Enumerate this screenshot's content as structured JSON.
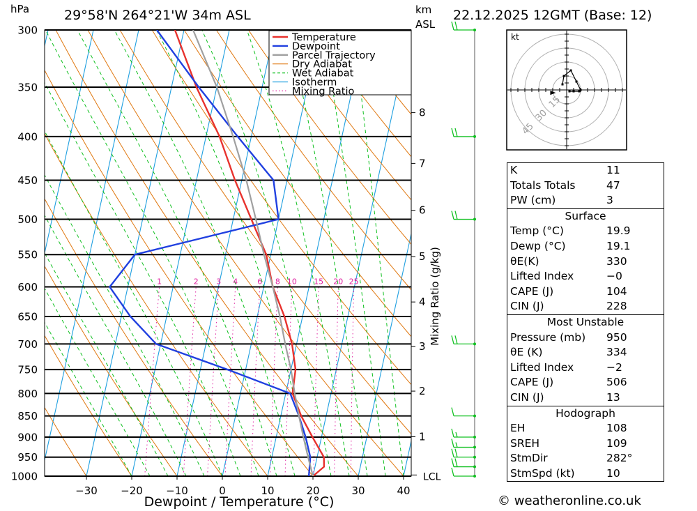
{
  "header": {
    "location": "29°58'N  264°21'W  34m  ASL",
    "timestamp": "22.12.2025  12GMT  (Base: 12)",
    "pressure_unit": "hPa",
    "height_unit_line1": "km",
    "height_unit_line2": "ASL"
  },
  "chart_data": {
    "type": "line",
    "title": "29°58'N 264°21'W 34m ASL",
    "xlabel": "Dewpoint / Temperature (°C)",
    "ylabel": "hPa",
    "mixing_ratio_axis_label": "Mixing Ratio (g/kg)",
    "x_ticks": [
      -30,
      -20,
      -10,
      0,
      10,
      20,
      30,
      40
    ],
    "x_tick_labels": [
      "−30",
      "−20",
      "−10",
      "0",
      "10",
      "20",
      "30",
      "40"
    ],
    "pressure_levels": [
      300,
      350,
      400,
      450,
      500,
      550,
      600,
      650,
      700,
      750,
      800,
      850,
      900,
      950,
      1000
    ],
    "ylim": [
      1000,
      300
    ],
    "height_ticks_km": [
      1,
      2,
      3,
      4,
      5,
      6,
      7,
      8
    ],
    "height_tick_pressures": [
      899,
      795,
      705,
      625,
      553,
      488,
      430,
      375
    ],
    "lcl_label": "LCL",
    "lcl_pressure": 995,
    "mixing_ratio_values": [
      1,
      2,
      3,
      4,
      6,
      8,
      10,
      15,
      20,
      25
    ],
    "legend": [
      {
        "name": "Temperature",
        "color": "#e8322d"
      },
      {
        "name": "Dewpoint",
        "color": "#2040e0"
      },
      {
        "name": "Parcel Trajectory",
        "color": "#a0a0a0"
      },
      {
        "name": "Dry Adiabat",
        "color": "#e07810"
      },
      {
        "name": "Wet Adiabat",
        "color": "#10c020"
      },
      {
        "name": "Isotherm",
        "color": "#20a0e0"
      },
      {
        "name": "Mixing Ratio",
        "color": "#e020a0"
      }
    ],
    "series": [
      {
        "name": "Temperature",
        "points": [
          [
            1000,
            20
          ],
          [
            975,
            22
          ],
          [
            950,
            21.5
          ],
          [
            900,
            18
          ],
          [
            850,
            14.5
          ],
          [
            800,
            11.5
          ],
          [
            750,
            11
          ],
          [
            700,
            9
          ],
          [
            650,
            6
          ],
          [
            600,
            2
          ],
          [
            550,
            -1
          ],
          [
            500,
            -6
          ],
          [
            450,
            -11.5
          ],
          [
            400,
            -17
          ],
          [
            350,
            -24.5
          ],
          [
            300,
            -32
          ]
        ]
      },
      {
        "name": "Dewpoint",
        "points": [
          [
            1000,
            19.1
          ],
          [
            950,
            18.5
          ],
          [
            900,
            16.5
          ],
          [
            850,
            14
          ],
          [
            800,
            11
          ],
          [
            750,
            -4
          ],
          [
            700,
            -21
          ],
          [
            650,
            -28
          ],
          [
            600,
            -34
          ],
          [
            550,
            -30
          ],
          [
            500,
            0
          ],
          [
            450,
            -3
          ],
          [
            400,
            -13
          ],
          [
            350,
            -24
          ],
          [
            300,
            -36
          ]
        ]
      },
      {
        "name": "Parcel Trajectory",
        "points": [
          [
            1000,
            20
          ],
          [
            950,
            18
          ],
          [
            900,
            16
          ],
          [
            850,
            14
          ],
          [
            800,
            12
          ],
          [
            750,
            10
          ],
          [
            700,
            7.5
          ],
          [
            650,
            5
          ],
          [
            600,
            2
          ],
          [
            550,
            -1.5
          ],
          [
            500,
            -5
          ],
          [
            450,
            -9
          ],
          [
            400,
            -14
          ],
          [
            350,
            -20
          ],
          [
            300,
            -28
          ]
        ]
      }
    ],
    "wind_barbs": [
      {
        "pressure": 300,
        "speed_kt": 20
      },
      {
        "pressure": 400,
        "speed_kt": 20
      },
      {
        "pressure": 500,
        "speed_kt": 20
      },
      {
        "pressure": 700,
        "speed_kt": 20
      },
      {
        "pressure": 850,
        "speed_kt": 10
      },
      {
        "pressure": 900,
        "speed_kt": 15
      },
      {
        "pressure": 925,
        "speed_kt": 15
      },
      {
        "pressure": 950,
        "speed_kt": 20
      },
      {
        "pressure": 975,
        "speed_kt": 20
      },
      {
        "pressure": 1000,
        "speed_kt": 10
      }
    ],
    "hodograph": {
      "unit_label": "kt",
      "ring_labels": [
        "15",
        "30",
        "45"
      ],
      "trace_points": [
        [
          -3,
          4
        ],
        [
          -2,
          10
        ],
        [
          3,
          14
        ],
        [
          7,
          6
        ],
        [
          10,
          0
        ],
        [
          9,
          -1
        ],
        [
          5,
          -1
        ],
        [
          2,
          -1
        ]
      ],
      "storm_motion": {
        "dir_deg": 282,
        "speed_kt": 10
      }
    }
  },
  "indices": {
    "general": [
      {
        "label": "K",
        "value": "11"
      },
      {
        "label": "Totals Totals",
        "value": "47"
      },
      {
        "label": "PW (cm)",
        "value": "3"
      }
    ],
    "surface": {
      "title": "Surface",
      "rows": [
        {
          "label": "Temp (°C)",
          "value": "19.9"
        },
        {
          "label": "Dewp (°C)",
          "value": "19.1"
        },
        {
          "label": "θE(K)",
          "value": "330"
        },
        {
          "label": "Lifted Index",
          "value": "−0"
        },
        {
          "label": "CAPE (J)",
          "value": "104"
        },
        {
          "label": "CIN (J)",
          "value": "228"
        }
      ]
    },
    "most_unstable": {
      "title": "Most Unstable",
      "rows": [
        {
          "label": "Pressure (mb)",
          "value": "950"
        },
        {
          "label": "θE (K)",
          "value": "334"
        },
        {
          "label": "Lifted Index",
          "value": "−2"
        },
        {
          "label": "CAPE (J)",
          "value": "506"
        },
        {
          "label": "CIN (J)",
          "value": "13"
        }
      ]
    },
    "hodograph": {
      "title": "Hodograph",
      "rows": [
        {
          "label": "EH",
          "value": "108"
        },
        {
          "label": "SREH",
          "value": "109"
        },
        {
          "label": "StmDir",
          "value": "282°"
        },
        {
          "label": "StmSpd (kt)",
          "value": "10"
        }
      ]
    }
  },
  "footer": {
    "credit": "© weatheronline.co.uk"
  }
}
